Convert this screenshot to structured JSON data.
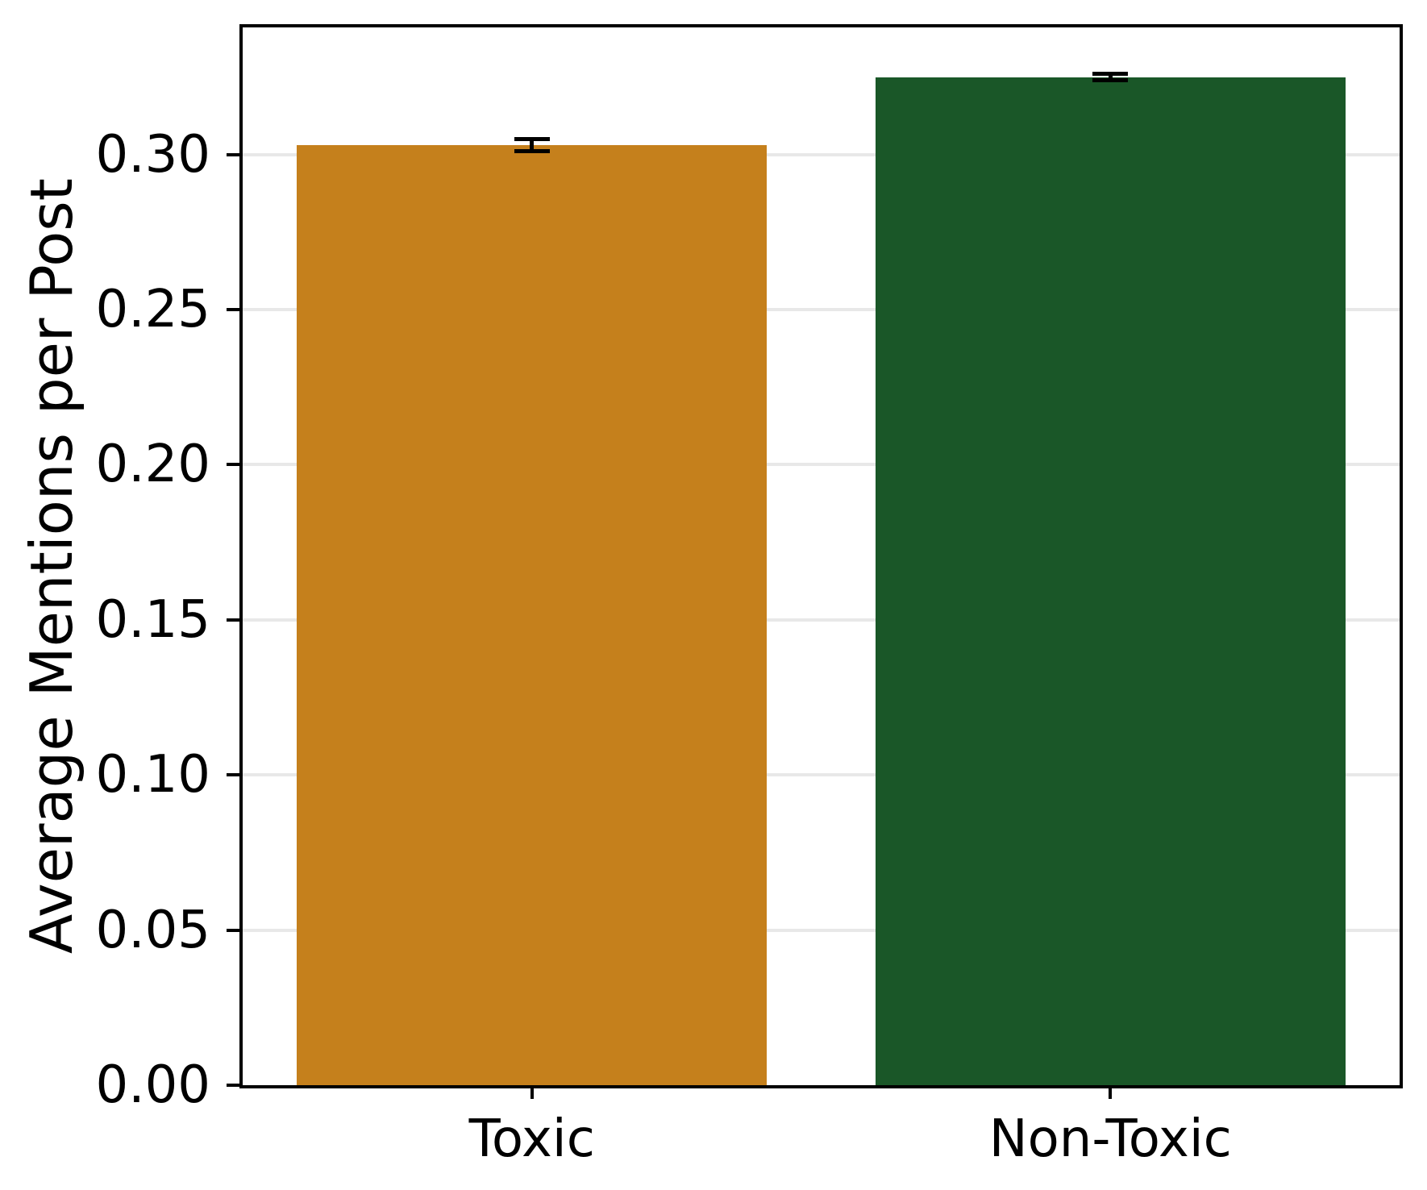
{
  "chart_data": {
    "type": "bar",
    "categories": [
      "Toxic",
      "Non-Toxic"
    ],
    "values": [
      0.303,
      0.325
    ],
    "errors": [
      0.002,
      0.001
    ],
    "bar_colors": [
      "#C5801C",
      "#1A5728"
    ],
    "error_bar_color": "#000000",
    "title": "",
    "xlabel": "",
    "ylabel": "Average Mentions per Post",
    "ylim": [
      0,
      0.341
    ],
    "yticks": [
      "0.00",
      "0.05",
      "0.10",
      "0.15",
      "0.20",
      "0.25",
      "0.30"
    ],
    "grid": "horizontal",
    "grid_color": "#E8E8E8",
    "axis_color": "#000000",
    "legend": null
  }
}
